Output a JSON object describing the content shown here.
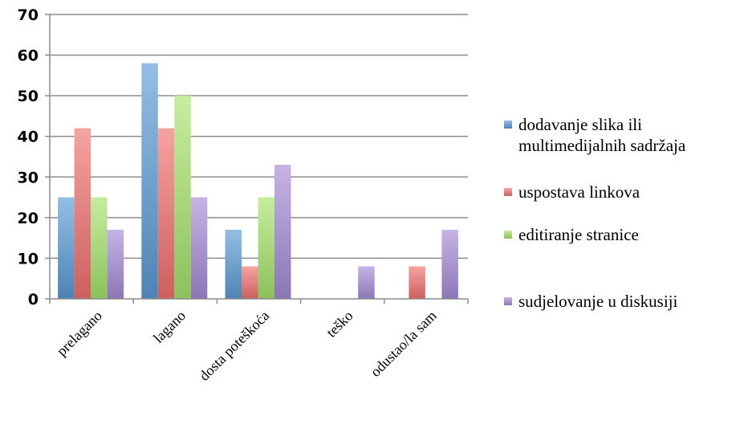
{
  "chart_data": {
    "type": "bar",
    "title": "",
    "xlabel": "",
    "ylabel": "",
    "categories": [
      "prelagano",
      "lagano",
      "dosta poteškoća",
      "teško",
      "odustao/la sam"
    ],
    "series": [
      {
        "name": "dodavanje slika ili multimedijalnih sadržaja",
        "color": "#5b9bd5",
        "values": [
          25,
          58,
          17,
          0,
          0
        ]
      },
      {
        "name": "uspostava linkova",
        "color": "#f0716f",
        "values": [
          42,
          42,
          8,
          0,
          8
        ]
      },
      {
        "name": "editiranje stranice",
        "color": "#a6e36b",
        "values": [
          25,
          50,
          25,
          0,
          0
        ]
      },
      {
        "name": "sudjelovanje u diskusiji",
        "color": "#a58bd6",
        "values": [
          17,
          25,
          33,
          8,
          17
        ]
      }
    ],
    "ylim": [
      0,
      70
    ],
    "yticks": [
      0,
      10,
      20,
      30,
      40,
      50,
      60,
      70
    ],
    "grid": true,
    "legend_position": "right"
  }
}
